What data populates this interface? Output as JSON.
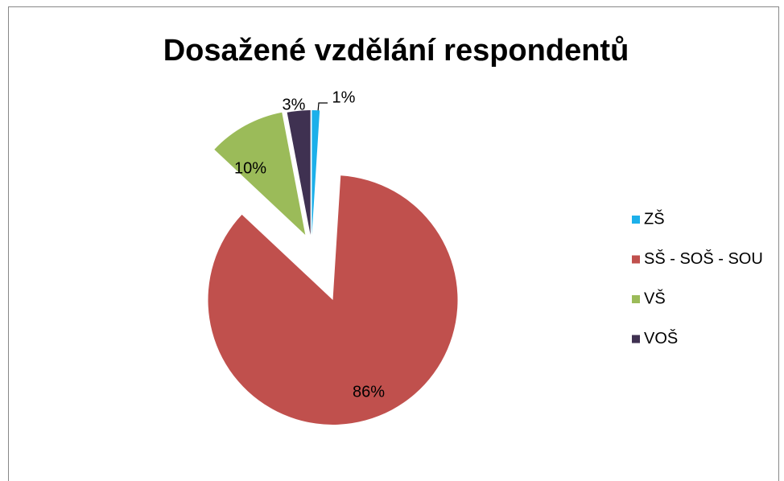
{
  "chart_data": {
    "type": "pie",
    "title": "Dosažené vzdělání respondentů",
    "categories": [
      "ZŠ",
      "SŠ - SOŠ - SOU",
      "VŠ",
      "VOŠ"
    ],
    "values": [
      1,
      86,
      10,
      3
    ],
    "value_labels": [
      "1%",
      "86%",
      "10%",
      "3%"
    ],
    "colors": [
      "#1cb0ea",
      "#c0504d",
      "#9bbb59",
      "#3f3151"
    ],
    "legend": "right"
  }
}
